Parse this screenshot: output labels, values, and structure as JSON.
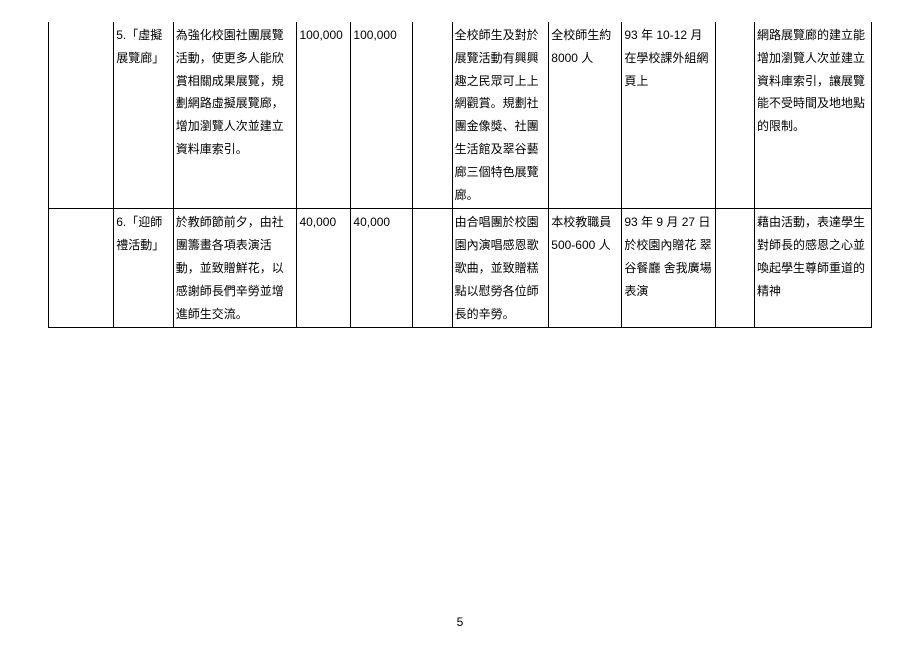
{
  "pageNumber": "5",
  "rows": [
    {
      "c0": "",
      "c1": "5.「虛擬展覽廊」",
      "c2": "為強化校園社團展覽活動，使更多人能欣賞相關成果展覽，規劃網路虛擬展覽廊，增加瀏覽人次並建立資料庫索引。",
      "c3": "100,000",
      "c4": "100,000",
      "c5": "",
      "c6": "全校師生及對於展覽活動有興興趣之民眾可上上網觀賞。規劃社團金像獎、社團生活館及翠谷藝廊三個特色展覽廊。",
      "c7": "全校師生約 8000 人",
      "c8": "93 年 10-12 月在學校課外組網頁上",
      "c9": "",
      "c10": "網路展覽廊的建立能增加瀏覽人次並建立資料庫索引，讓展覽能不受時間及地地點的限制。"
    },
    {
      "c0": "",
      "c1": "6.「迎師禮活動」",
      "c2": "於教師節前夕，由社團籌畫各項表演活動，並致贈鮮花，以感謝師長們辛勞並增進師生交流。",
      "c3": "40,000",
      "c4": "40,000",
      "c5": "",
      "c6": "由合唱團於校園園內演唱感恩歌歌曲，並致贈糕點以慰勞各位師長的辛勞。",
      "c7": "本校教職員 500-600 人",
      "c8": "93 年 9 月 27 日\n於校園內贈花\n翠谷餐廳\n舍我廣場表演",
      "c9": "",
      "c10": "藉由活動，表達學生對師長的感恩之心並喚起學生尊師重道的精神"
    }
  ]
}
